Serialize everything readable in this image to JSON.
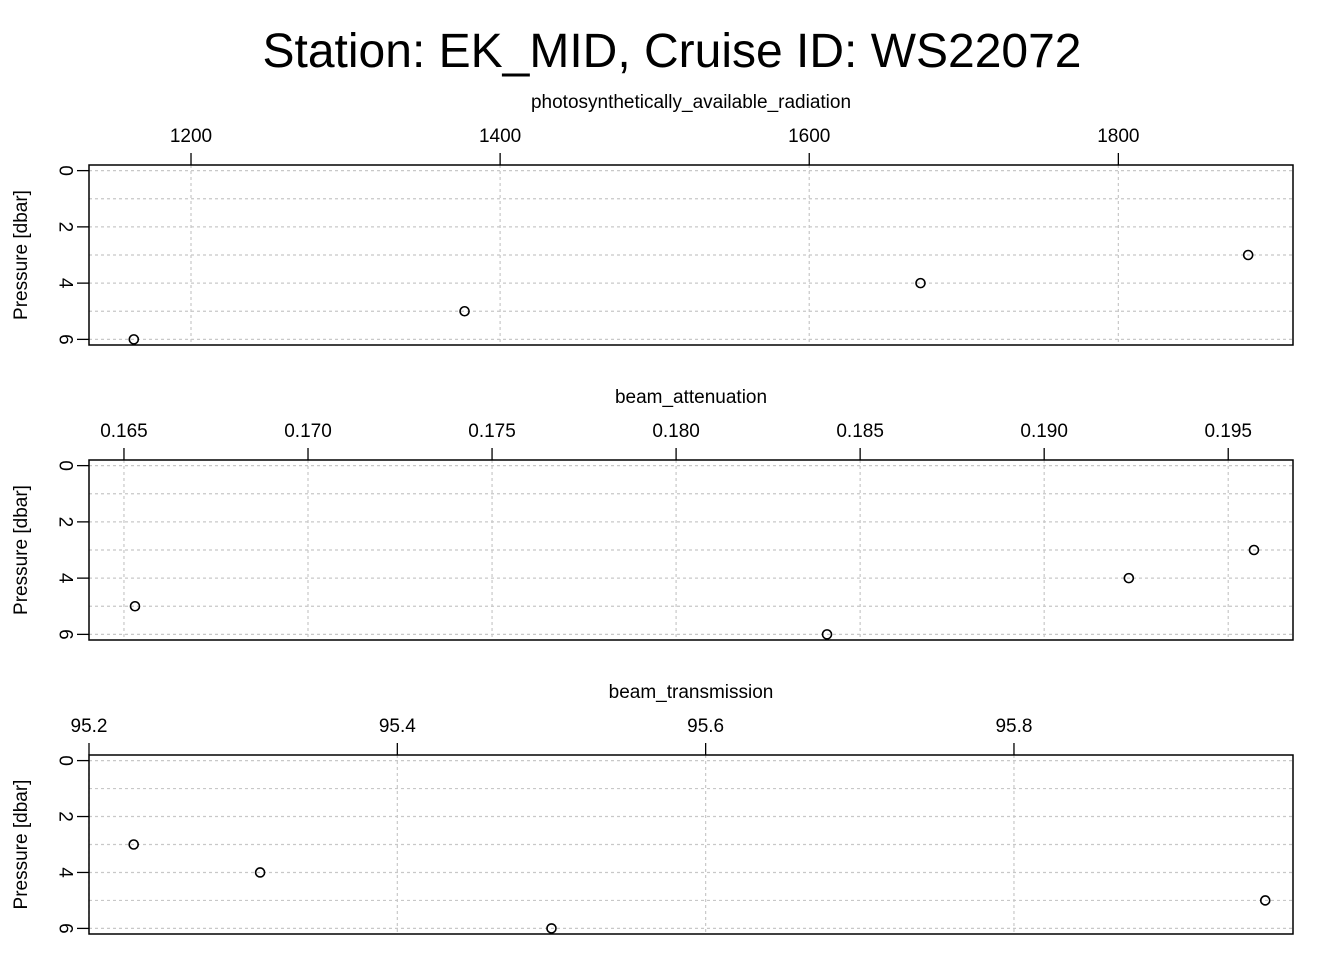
{
  "title": "Station: EK_MID, Cruise ID: WS22072",
  "chart_data": [
    {
      "type": "scatter",
      "xlabel": "photosynthetically_available_radiation",
      "ylabel": "Pressure [dbar]",
      "x_ticks": [
        1200,
        1400,
        1600,
        1800
      ],
      "x_tick_labels": [
        "1200",
        "1400",
        "1600",
        "1800"
      ],
      "xlim": [
        1134,
        1913
      ],
      "y_ticks": [
        0,
        2,
        4,
        6
      ],
      "y_tick_labels": [
        "0",
        "2",
        "4",
        "6"
      ],
      "ylim": [
        6.2,
        -0.2
      ],
      "y_reversed": true,
      "grid": true,
      "x_axis_position": "top",
      "series": [
        {
          "points": [
            [
              1884,
              3
            ],
            [
              1672,
              4
            ],
            [
              1377,
              5
            ],
            [
              1163,
              6
            ]
          ]
        }
      ]
    },
    {
      "type": "scatter",
      "xlabel": "beam_attenuation",
      "ylabel": "Pressure [dbar]",
      "x_ticks": [
        0.165,
        0.17,
        0.175,
        0.18,
        0.185,
        0.19,
        0.195
      ],
      "x_tick_labels": [
        "0.165",
        "0.170",
        "0.175",
        "0.180",
        "0.185",
        "0.190",
        "0.195"
      ],
      "xlim": [
        0.16405,
        0.19676
      ],
      "y_ticks": [
        0,
        2,
        4,
        6
      ],
      "y_tick_labels": [
        "0",
        "2",
        "4",
        "6"
      ],
      "ylim": [
        6.2,
        -0.2
      ],
      "y_reversed": true,
      "grid": true,
      "x_axis_position": "top",
      "series": [
        {
          "points": [
            [
              0.1957,
              3
            ],
            [
              0.1923,
              4
            ],
            [
              0.1653,
              5
            ],
            [
              0.1841,
              6
            ]
          ]
        }
      ]
    },
    {
      "type": "scatter",
      "xlabel": "beam_transmission",
      "ylabel": "Pressure [dbar]",
      "x_ticks": [
        95.2,
        95.4,
        95.6,
        95.8
      ],
      "x_tick_labels": [
        "95.2",
        "95.4",
        "95.6",
        "95.8"
      ],
      "xlim": [
        95.2,
        95.981
      ],
      "y_ticks": [
        0,
        2,
        4,
        6
      ],
      "y_tick_labels": [
        "0",
        "2",
        "4",
        "6"
      ],
      "ylim": [
        6.2,
        -0.2
      ],
      "y_reversed": true,
      "grid": true,
      "x_axis_position": "top",
      "series": [
        {
          "points": [
            [
              95.229,
              3
            ],
            [
              95.311,
              4
            ],
            [
              95.5,
              6
            ],
            [
              95.963,
              5
            ]
          ]
        }
      ]
    }
  ]
}
